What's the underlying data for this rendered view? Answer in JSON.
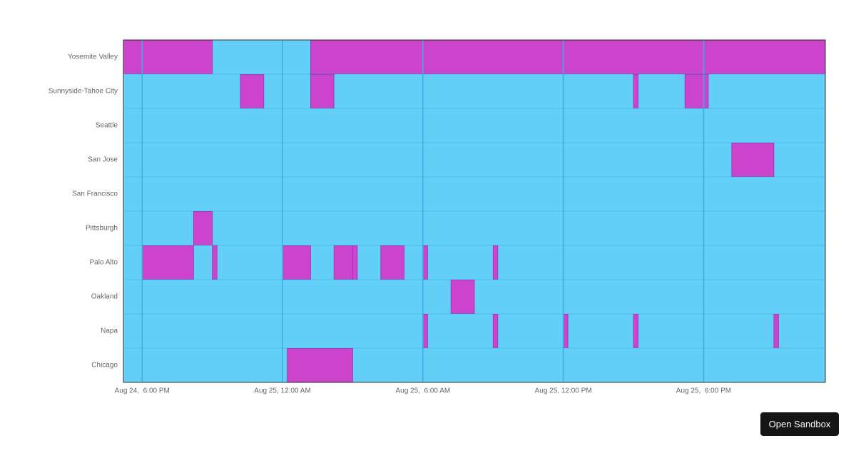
{
  "chart_data": {
    "type": "timeline",
    "categories": [
      "Yosemite Valley",
      "Sunnyside-Tahoe City",
      "Seattle",
      "San Jose",
      "San Francisco",
      "Pittsburgh",
      "Palo Alto",
      "Oakland",
      "Napa",
      "Chicago"
    ],
    "spans": [
      [
        [
          17.2,
          21
        ],
        [
          25.2,
          47.2
        ]
      ],
      [
        [
          22.2,
          23.2
        ],
        [
          25.2,
          26.2
        ],
        [
          39,
          39.2
        ],
        [
          41.2,
          42.2
        ]
      ],
      [],
      [
        [
          43.2,
          45
        ]
      ],
      [],
      [
        [
          20.2,
          21
        ]
      ],
      [
        [
          18,
          20.2
        ],
        [
          21,
          21.2
        ],
        [
          24,
          25.2
        ],
        [
          26.2,
          27
        ],
        [
          27,
          27.2
        ],
        [
          28.2,
          29.2
        ],
        [
          30,
          30.2
        ],
        [
          33,
          33.2
        ]
      ],
      [
        [
          31.2,
          32.2
        ]
      ],
      [
        [
          30,
          30.2
        ],
        [
          33,
          33.2
        ],
        [
          36,
          36.2
        ],
        [
          39,
          39.2
        ],
        [
          45,
          45.2
        ]
      ],
      [
        [
          24.2,
          27
        ]
      ]
    ],
    "xlim": [
      17.2,
      47.2
    ],
    "xticks": [
      {
        "value": 18,
        "label": "Aug 24,  6:00 PM"
      },
      {
        "value": 24,
        "label": "Aug 25, 12:00 AM"
      },
      {
        "value": 30,
        "label": "Aug 25,  6:00 AM"
      },
      {
        "value": 36,
        "label": "Aug 25, 12:00 PM"
      },
      {
        "value": 42,
        "label": "Aug 25,  6:00 PM"
      }
    ],
    "grid": true,
    "colors": {
      "base": "#64cff6",
      "span": "#cc44cc",
      "grid": "#3aaee0"
    }
  },
  "ui": {
    "button": "Open Sandbox"
  }
}
